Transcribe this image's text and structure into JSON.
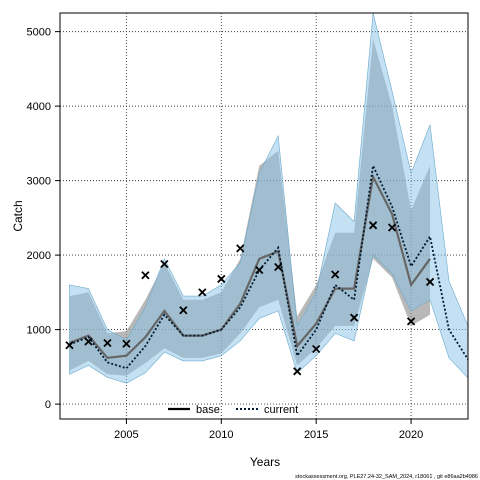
{
  "chart_data": {
    "type": "line",
    "title": "",
    "xlabel": "Years",
    "ylabel": "Catch",
    "xlim": [
      2001.5,
      2023
    ],
    "ylim": [
      -200,
      5250
    ],
    "grid": true,
    "x_ticks": [
      2005,
      2010,
      2015,
      2020
    ],
    "y_ticks": [
      0,
      1000,
      2000,
      3000,
      4000,
      5000
    ],
    "x_tick_labels": [
      "2005",
      "2010",
      "2015",
      "2020"
    ],
    "y_tick_labels": [
      "0",
      "1000",
      "2000",
      "3000",
      "4000",
      "5000"
    ],
    "legend": {
      "placement": "bottom-center",
      "entries": [
        {
          "label": "base",
          "style": "solid"
        },
        {
          "label": "current",
          "style": "dotted"
        }
      ]
    },
    "colors": {
      "base_band": "#888888",
      "base_line": "#666666",
      "current_band": "#87c3e6",
      "current_band_edge": "#6aa9cc",
      "current_line": "#001a33",
      "grid": "#333333"
    },
    "series": [
      {
        "name": "base",
        "x": [
          2002,
          2003,
          2004,
          2005,
          2006,
          2007,
          2008,
          2009,
          2010,
          2011,
          2012,
          2013,
          2014,
          2015,
          2016,
          2017,
          2018,
          2019,
          2020,
          2021
        ],
        "values": [
          820,
          920,
          620,
          650,
          900,
          1250,
          920,
          920,
          1000,
          1350,
          1950,
          2050,
          780,
          1080,
          1550,
          1550,
          3050,
          2550,
          1600,
          1950
        ],
        "lower": [
          450,
          580,
          400,
          380,
          550,
          750,
          620,
          620,
          680,
          950,
          1300,
          1400,
          520,
          750,
          1050,
          1050,
          1950,
          1700,
          1050,
          1200
        ],
        "upper": [
          1450,
          1500,
          950,
          980,
          1400,
          1900,
          1400,
          1400,
          1500,
          1950,
          3200,
          3400,
          1180,
          1600,
          2300,
          2300,
          4900,
          4000,
          2600,
          3200
        ]
      },
      {
        "name": "current",
        "x": [
          2002,
          2003,
          2004,
          2005,
          2006,
          2007,
          2008,
          2009,
          2010,
          2011,
          2012,
          2013,
          2014,
          2015,
          2016,
          2017,
          2018,
          2019,
          2020,
          2021,
          2022,
          2023
        ],
        "values": [
          800,
          900,
          560,
          480,
          780,
          1200,
          920,
          920,
          1000,
          1300,
          1800,
          2100,
          650,
          1000,
          1600,
          1400,
          3200,
          2650,
          1850,
          2250,
          1000,
          600
        ],
        "lower": [
          400,
          520,
          360,
          280,
          420,
          700,
          580,
          580,
          650,
          850,
          1150,
          1250,
          420,
          650,
          950,
          850,
          2000,
          1750,
          1250,
          1400,
          620,
          350
        ],
        "upper": [
          1600,
          1550,
          1000,
          860,
          1300,
          1950,
          1450,
          1450,
          1600,
          1900,
          3100,
          3600,
          1050,
          1500,
          2700,
          2450,
          5250,
          4200,
          3100,
          3750,
          1650,
          1050
        ]
      },
      {
        "name": "",
        "type": "scatter",
        "marker": "x",
        "x": [
          2002,
          2003,
          2004,
          2005,
          2006,
          2007,
          2008,
          2009,
          2010,
          2011,
          2012,
          2013,
          2014,
          2015,
          2016,
          2017,
          2018,
          2019,
          2020,
          2021
        ],
        "values": [
          790,
          840,
          820,
          810,
          1730,
          1880,
          1260,
          1500,
          1680,
          2090,
          1800,
          1840,
          440,
          740,
          1740,
          1160,
          2400,
          2370,
          1110,
          1640
        ]
      }
    ],
    "footer": "stockassessment.org, PLE27.24-32_SAM_2024, r18061 , git e86aa2b4986"
  }
}
